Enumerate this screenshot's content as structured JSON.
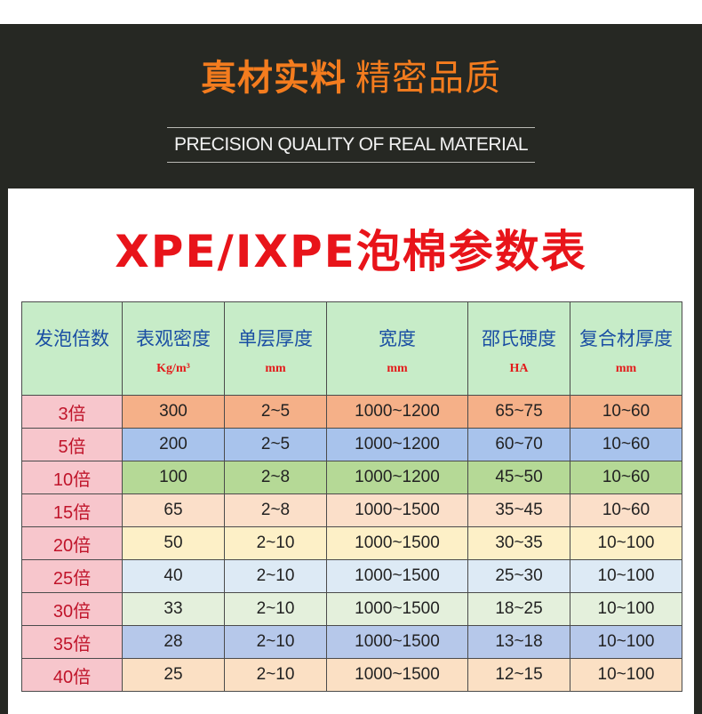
{
  "banner": {
    "headline_bold": "真材实料",
    "headline_light": "精密品质",
    "subtitle": "PRECISION QUALITY OF REAL MATERIAL"
  },
  "table": {
    "title": "XPE/IXPE泡棉参数表",
    "headers": [
      {
        "label": "发泡倍数",
        "unit": ""
      },
      {
        "label": "表观密度",
        "unit": "Kg/m³"
      },
      {
        "label": "单层厚度",
        "unit": "mm"
      },
      {
        "label": "宽度",
        "unit": "mm"
      },
      {
        "label": "邵氏硬度",
        "unit": "HA"
      },
      {
        "label": "复合材厚度",
        "unit": "mm"
      }
    ],
    "rows": [
      {
        "mult": "3倍",
        "density": "300",
        "thickness": "2~5",
        "width": "1000~1200",
        "hardness": "65~75",
        "composite": "10~60",
        "color": "#f5b088"
      },
      {
        "mult": "5倍",
        "density": "200",
        "thickness": "2~5",
        "width": "1000~1200",
        "hardness": "60~70",
        "composite": "10~60",
        "color": "#a8c3ec"
      },
      {
        "mult": "10倍",
        "density": "100",
        "thickness": "2~8",
        "width": "1000~1200",
        "hardness": "45~50",
        "composite": "10~60",
        "color": "#b5d996"
      },
      {
        "mult": "15倍",
        "density": "65",
        "thickness": "2~8",
        "width": "1000~1500",
        "hardness": "35~45",
        "composite": "10~60",
        "color": "#fbdfc9"
      },
      {
        "mult": "20倍",
        "density": "50",
        "thickness": "2~10",
        "width": "1000~1500",
        "hardness": "30~35",
        "composite": "10~100",
        "color": "#fdf0c7"
      },
      {
        "mult": "25倍",
        "density": "40",
        "thickness": "2~10",
        "width": "1000~1500",
        "hardness": "25~30",
        "composite": "10~100",
        "color": "#ddeaf5"
      },
      {
        "mult": "30倍",
        "density": "33",
        "thickness": "2~10",
        "width": "1000~1500",
        "hardness": "18~25",
        "composite": "10~100",
        "color": "#e4f0dc"
      },
      {
        "mult": "35倍",
        "density": "28",
        "thickness": "2~10",
        "width": "1000~1500",
        "hardness": "13~18",
        "composite": "10~100",
        "color": "#b6c8ea"
      },
      {
        "mult": "40倍",
        "density": "25",
        "thickness": "2~10",
        "width": "1000~1500",
        "hardness": "12~15",
        "composite": "10~100",
        "color": "#fbe0c4"
      }
    ]
  }
}
